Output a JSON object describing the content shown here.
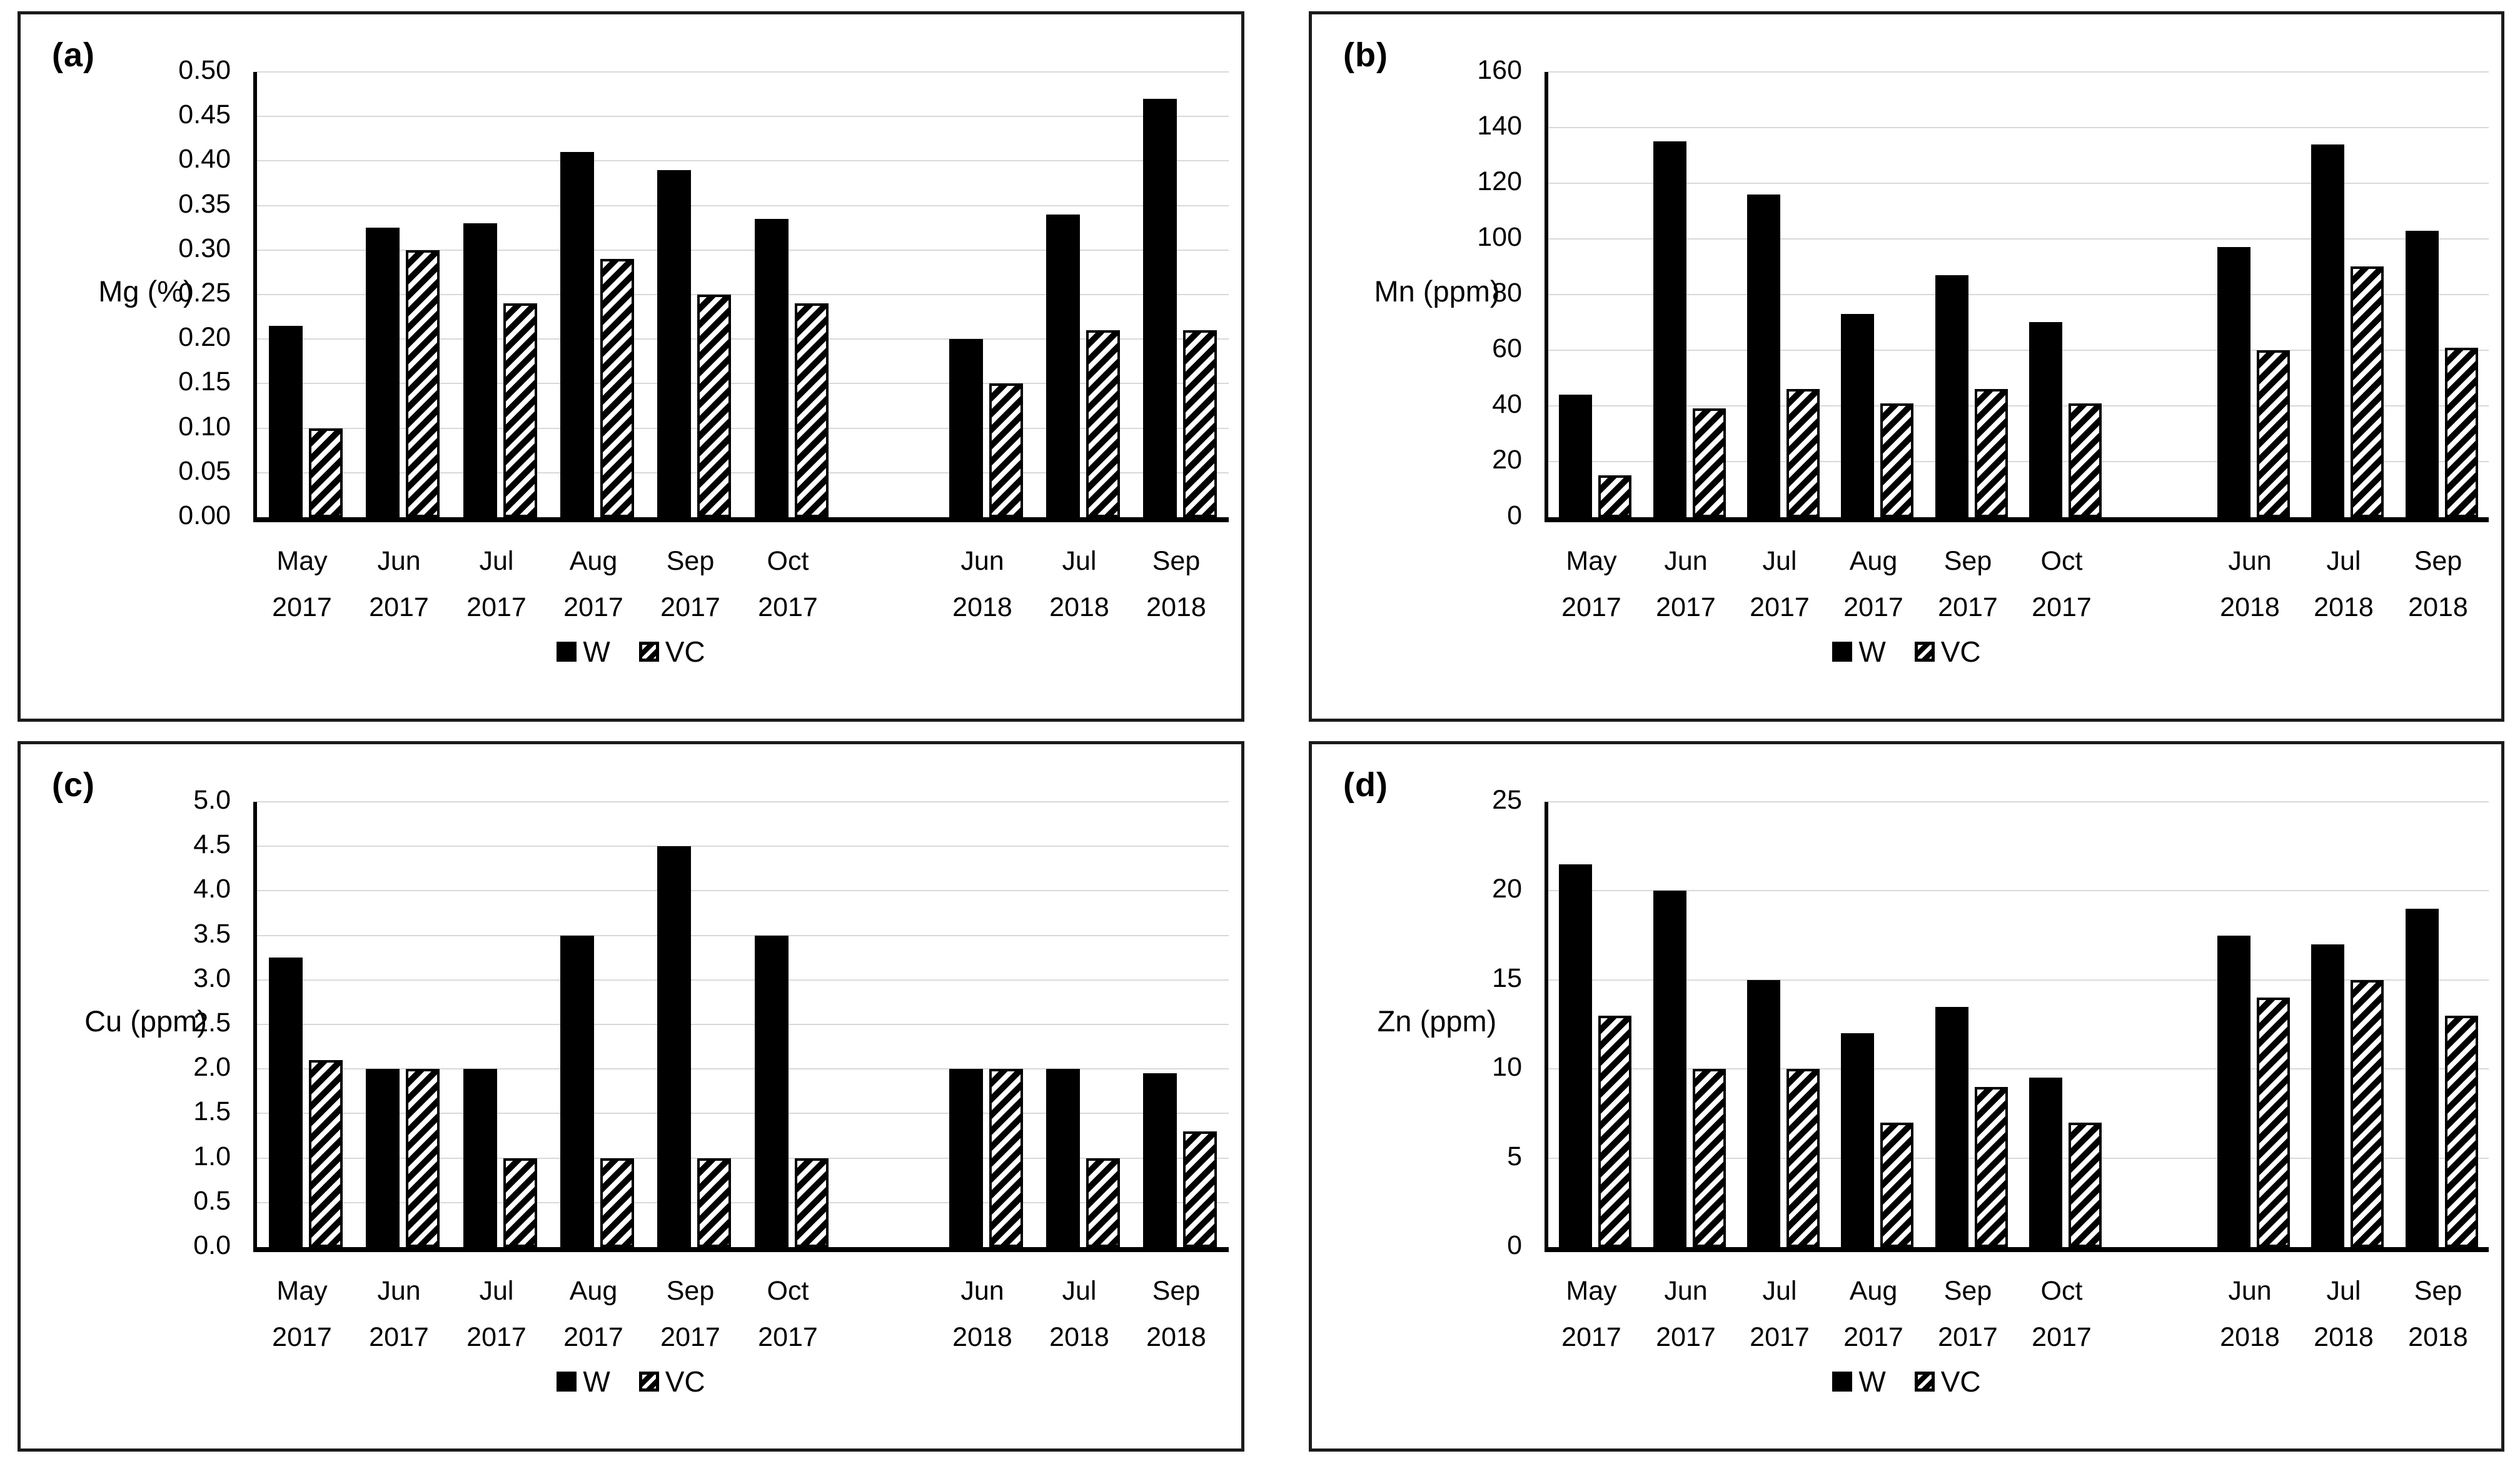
{
  "figure": {
    "description": "Four-panel bar chart figure comparing W and VC treatments by month",
    "background": "#ffffff"
  },
  "colors": {
    "bar_w_fill": "#000000",
    "bar_vc_pattern": "black-white-diagonal-hatch",
    "gridline": "#d9d9d9",
    "axis": "#000000",
    "panel_border": "#1b1b1b",
    "text": "#000000"
  },
  "legend": {
    "w_label": "W",
    "vc_label": "VC"
  },
  "chart_data": [
    {
      "type": "bar",
      "panel_label": "(a)",
      "y_axis_title": "Mg (%)",
      "y_min": 0,
      "y_max": 0.5,
      "y_step": 0.05,
      "y_decimals": 2,
      "grid": true,
      "legend_position": "bottom-center",
      "categories": [
        "May 2017",
        "Jun 2017",
        "Jul 2017",
        "Aug 2017",
        "Sep 2017",
        "Oct 2017",
        "",
        "Jun 2018",
        "Jul 2018",
        "Sep 2018"
      ],
      "series": [
        {
          "name": "W",
          "fill": "solid-black",
          "values": [
            0.215,
            0.325,
            0.33,
            0.41,
            0.39,
            0.335,
            null,
            0.2,
            0.34,
            0.47
          ]
        },
        {
          "name": "VC",
          "fill": "diagonal-hatch",
          "values": [
            0.1,
            0.3,
            0.24,
            0.29,
            0.25,
            0.24,
            null,
            0.15,
            0.21,
            0.21
          ]
        }
      ]
    },
    {
      "type": "bar",
      "panel_label": "(b)",
      "y_axis_title": "Mn (ppm)",
      "y_min": 0,
      "y_max": 160,
      "y_step": 20,
      "y_decimals": 0,
      "grid": true,
      "legend_position": "bottom-center",
      "categories": [
        "May 2017",
        "Jun 2017",
        "Jul 2017",
        "Aug 2017",
        "Sep 2017",
        "Oct 2017",
        "",
        "Jun 2018",
        "Jul 2018",
        "Sep 2018"
      ],
      "series": [
        {
          "name": "W",
          "fill": "solid-black",
          "values": [
            44,
            135,
            116,
            73,
            87,
            70,
            null,
            97,
            134,
            103
          ]
        },
        {
          "name": "VC",
          "fill": "diagonal-hatch",
          "values": [
            15,
            39,
            46,
            41,
            46,
            41,
            null,
            60,
            90,
            61
          ]
        }
      ]
    },
    {
      "type": "bar",
      "panel_label": "(c)",
      "y_axis_title": "Cu (ppm)",
      "y_min": 0,
      "y_max": 5,
      "y_step": 0.5,
      "y_decimals": 1,
      "grid": true,
      "legend_position": "bottom-center",
      "categories": [
        "May 2017",
        "Jun 2017",
        "Jul 2017",
        "Aug 2017",
        "Sep 2017",
        "Oct 2017",
        "",
        "Jun 2018",
        "Jul 2018",
        "Sep 2018"
      ],
      "series": [
        {
          "name": "W",
          "fill": "solid-black",
          "values": [
            3.25,
            2,
            2,
            3.5,
            4.5,
            3.5,
            null,
            2,
            2,
            1.95
          ]
        },
        {
          "name": "VC",
          "fill": "diagonal-hatch",
          "values": [
            2.1,
            2,
            1,
            1,
            1,
            1,
            null,
            2,
            1,
            1.3
          ]
        }
      ]
    },
    {
      "type": "bar",
      "panel_label": "(d)",
      "y_axis_title": "Zn (ppm)",
      "y_min": 0,
      "y_max": 25,
      "y_step": 5,
      "y_decimals": 0,
      "grid": true,
      "legend_position": "bottom-center",
      "categories": [
        "May 2017",
        "Jun 2017",
        "Jul 2017",
        "Aug 2017",
        "Sep 2017",
        "Oct 2017",
        "",
        "Jun 2018",
        "Jul 2018",
        "Sep 2018"
      ],
      "series": [
        {
          "name": "W",
          "fill": "solid-black",
          "values": [
            21.5,
            20,
            15,
            12,
            13.5,
            9.5,
            null,
            17.5,
            17,
            19
          ]
        },
        {
          "name": "VC",
          "fill": "diagonal-hatch",
          "values": [
            13,
            10,
            10,
            7,
            9,
            7,
            null,
            14,
            15,
            13
          ]
        }
      ]
    }
  ]
}
